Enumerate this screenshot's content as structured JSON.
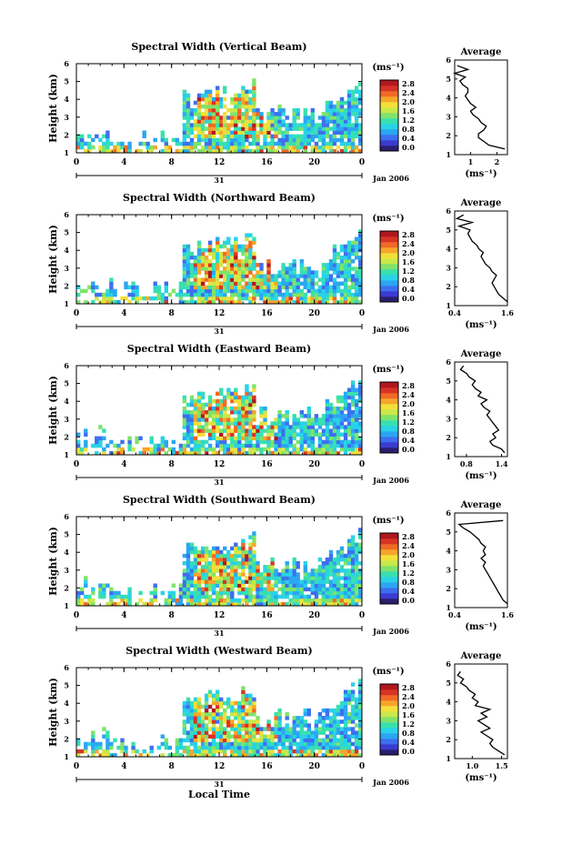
{
  "page": {
    "date_label": "Jan 2006",
    "day_label": "31",
    "x_axis_title": "Local Time"
  },
  "chart_data": [
    {
      "type": "heatmap",
      "title": "Spectral Width (Vertical Beam)",
      "ylabel": "Height (km)",
      "xticks": [
        "0",
        "4",
        "8",
        "12",
        "16",
        "20",
        "0"
      ],
      "yticks": [
        "1",
        "2",
        "3",
        "4",
        "5",
        "6"
      ],
      "ylim": [
        1,
        6
      ],
      "colorbar": {
        "unit": "(ms⁻¹)",
        "ticks": [
          "2.8",
          "2.4",
          "2.0",
          "1.6",
          "1.2",
          "0.8",
          "0.4",
          "0.0"
        ],
        "range": [
          0.0,
          2.8
        ]
      },
      "average": {
        "title": "Average",
        "xlabel": "(ms⁻¹)",
        "xticks": [
          "1",
          "2"
        ],
        "xlim": [
          0.4,
          2.4
        ],
        "heights": [
          1.3,
          1.5,
          1.7,
          1.9,
          2.1,
          2.3,
          2.5,
          2.7,
          2.9,
          3.1,
          3.3,
          3.5,
          3.7,
          3.9,
          4.1,
          4.3,
          4.5,
          4.7,
          4.9,
          5.1,
          5.3,
          5.5,
          5.7
        ],
        "values": [
          2.3,
          1.7,
          1.5,
          1.3,
          1.3,
          1.5,
          1.6,
          1.4,
          1.3,
          1.1,
          1.0,
          1.2,
          1.0,
          0.9,
          0.8,
          0.9,
          0.9,
          0.7,
          0.6,
          0.8,
          0.4,
          0.9,
          0.5
        ]
      }
    },
    {
      "type": "heatmap",
      "title": "Spectral Width (Northward Beam)",
      "ylabel": "Height (km)",
      "xticks": [
        "0",
        "4",
        "8",
        "12",
        "16",
        "20",
        "0"
      ],
      "yticks": [
        "1",
        "2",
        "3",
        "4",
        "5",
        "6"
      ],
      "ylim": [
        1,
        6
      ],
      "colorbar": {
        "unit": "(ms⁻¹)",
        "ticks": [
          "2.8",
          "2.4",
          "2.0",
          "1.6",
          "1.2",
          "0.8",
          "0.4",
          "0.0"
        ],
        "range": [
          0.0,
          2.8
        ]
      },
      "average": {
        "title": "Average",
        "xlabel": "(ms⁻¹)",
        "xticks": [
          "0.4",
          "1.6"
        ],
        "xlim": [
          0.4,
          1.6
        ],
        "heights": [
          1.2,
          1.4,
          1.6,
          1.8,
          2.0,
          2.2,
          2.4,
          2.6,
          2.8,
          3.0,
          3.2,
          3.4,
          3.6,
          3.8,
          4.0,
          4.2,
          4.4,
          4.6,
          4.8,
          5.0,
          5.2,
          5.4,
          5.6,
          5.8
        ],
        "values": [
          1.6,
          1.5,
          1.4,
          1.35,
          1.3,
          1.25,
          1.3,
          1.35,
          1.25,
          1.2,
          1.1,
          1.05,
          1.0,
          1.05,
          0.95,
          0.9,
          0.8,
          0.75,
          0.7,
          0.75,
          0.5,
          0.8,
          0.45,
          0.6
        ]
      }
    },
    {
      "type": "heatmap",
      "title": "Spectral Width (Eastward Beam)",
      "ylabel": "Height (km)",
      "xticks": [
        "0",
        "4",
        "8",
        "12",
        "16",
        "20",
        "0"
      ],
      "yticks": [
        "1",
        "2",
        "3",
        "4",
        "5",
        "6"
      ],
      "ylim": [
        1,
        6
      ],
      "colorbar": {
        "unit": "(ms⁻¹)",
        "ticks": [
          "2.8",
          "2.4",
          "2.0",
          "1.6",
          "1.2",
          "0.8",
          "0.4",
          "0.0"
        ],
        "range": [
          0.0,
          2.8
        ]
      },
      "average": {
        "title": "Average",
        "xlabel": "(ms⁻¹)",
        "xticks": [
          "0.8",
          "1.4"
        ],
        "xlim": [
          0.6,
          1.5
        ],
        "heights": [
          1.2,
          1.4,
          1.6,
          1.8,
          2.0,
          2.2,
          2.4,
          2.6,
          2.8,
          3.0,
          3.2,
          3.4,
          3.6,
          3.8,
          4.0,
          4.2,
          4.4,
          4.6,
          4.8,
          5.0,
          5.2,
          5.4,
          5.6,
          5.8
        ],
        "values": [
          1.45,
          1.4,
          1.25,
          1.2,
          1.3,
          1.25,
          1.35,
          1.3,
          1.25,
          1.2,
          1.15,
          1.2,
          1.1,
          1.05,
          1.15,
          1.0,
          1.05,
          0.95,
          0.9,
          0.95,
          0.85,
          0.8,
          0.7,
          0.75
        ]
      }
    },
    {
      "type": "heatmap",
      "title": "Spectral Width (Southward Beam)",
      "ylabel": "Height (km)",
      "xticks": [
        "0",
        "4",
        "8",
        "12",
        "16",
        "20",
        "0"
      ],
      "yticks": [
        "1",
        "2",
        "3",
        "4",
        "5",
        "6"
      ],
      "ylim": [
        1,
        6
      ],
      "colorbar": {
        "unit": "(ms⁻¹)",
        "ticks": [
          "2.8",
          "2.4",
          "2.0",
          "1.6",
          "1.2",
          "0.8",
          "0.4",
          "0.0"
        ],
        "range": [
          0.0,
          2.8
        ]
      },
      "average": {
        "title": "Average",
        "xlabel": "(ms⁻¹)",
        "xticks": [
          "0.4",
          "1.6"
        ],
        "xlim": [
          0.4,
          1.6
        ],
        "heights": [
          1.2,
          1.4,
          1.6,
          1.8,
          2.0,
          2.2,
          2.4,
          2.6,
          2.8,
          3.0,
          3.2,
          3.4,
          3.6,
          3.8,
          4.0,
          4.2,
          4.4,
          4.6,
          4.8,
          5.0,
          5.2,
          5.4,
          5.6
        ],
        "values": [
          1.6,
          1.5,
          1.45,
          1.4,
          1.35,
          1.3,
          1.25,
          1.2,
          1.15,
          1.1,
          1.05,
          1.1,
          1.0,
          1.1,
          1.05,
          1.1,
          1.0,
          0.95,
          0.85,
          0.75,
          0.6,
          0.5,
          1.5
        ]
      }
    },
    {
      "type": "heatmap",
      "title": "Spectral Width (Westward Beam)",
      "ylabel": "Height (km)",
      "xticks": [
        "0",
        "4",
        "8",
        "12",
        "16",
        "20",
        "0"
      ],
      "yticks": [
        "1",
        "2",
        "3",
        "4",
        "5",
        "6"
      ],
      "ylim": [
        1,
        6
      ],
      "colorbar": {
        "unit": "(ms⁻¹)",
        "ticks": [
          "2.8",
          "2.4",
          "2.0",
          "1.6",
          "1.2",
          "0.8",
          "0.4",
          "0.0"
        ],
        "range": [
          0.0,
          2.8
        ]
      },
      "average": {
        "title": "Average",
        "xlabel": "(ms⁻¹)",
        "xticks": [
          "1.0",
          "1.5"
        ],
        "xlim": [
          0.7,
          1.6
        ],
        "heights": [
          1.2,
          1.4,
          1.6,
          1.8,
          2.0,
          2.2,
          2.4,
          2.6,
          2.8,
          3.0,
          3.2,
          3.4,
          3.6,
          3.8,
          4.0,
          4.2,
          4.4,
          4.6,
          4.8,
          5.0,
          5.2,
          5.4,
          5.6
        ],
        "values": [
          1.55,
          1.45,
          1.35,
          1.3,
          1.35,
          1.25,
          1.15,
          1.3,
          1.2,
          1.1,
          1.25,
          1.15,
          1.3,
          1.05,
          1.1,
          1.0,
          1.05,
          0.95,
          0.9,
          0.8,
          0.85,
          0.75,
          0.8
        ]
      }
    }
  ]
}
